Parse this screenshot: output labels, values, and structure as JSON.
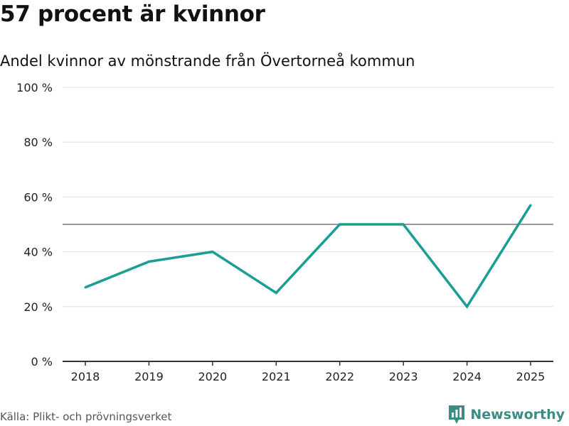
{
  "title": "57 procent är kvinnor",
  "subtitle": "Andel kvinnor av mönstrande från Övertorneå kommun",
  "source": "Källa: Plikt- och prövningsverket",
  "brand": "Newsworthy",
  "colors": {
    "line": "#1a9e92",
    "reference": "#777777",
    "grid": "#dddddd",
    "axis": "#333333",
    "brand": "#3b8c84"
  },
  "chart_data": {
    "type": "line",
    "title": "57 procent är kvinnor",
    "subtitle": "Andel kvinnor av mönstrande från Övertorneå kommun",
    "x": [
      "2018",
      "2019",
      "2020",
      "2021",
      "2022",
      "2023",
      "2024",
      "2025"
    ],
    "series": [
      {
        "values": [
          27,
          36.4,
          40,
          25,
          50,
          50,
          20,
          57
        ]
      }
    ],
    "reference_line": 50,
    "ylim": [
      0,
      100
    ],
    "yticks": [
      0,
      20,
      40,
      60,
      80,
      100
    ],
    "ytick_labels": [
      "0 %",
      "20 %",
      "40 %",
      "60 %",
      "80 %",
      "100 %"
    ],
    "grid": true,
    "xlabel": "",
    "ylabel": ""
  }
}
